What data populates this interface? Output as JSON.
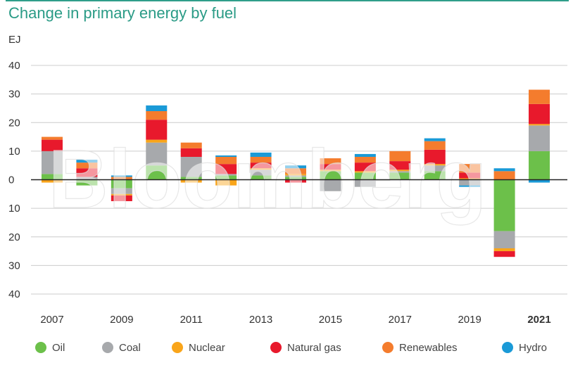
{
  "header": {
    "title": "Change in primary energy by fuel"
  },
  "chart_data": {
    "type": "bar",
    "stacked": true,
    "title": "Change in primary energy by fuel",
    "ylabel": "EJ",
    "ylim": [
      -40,
      40
    ],
    "yticks": [
      40,
      30,
      20,
      10,
      0,
      -10,
      -20,
      -30,
      -40
    ],
    "ytick_labels": [
      "40",
      "30",
      "20",
      "10",
      "0",
      "10",
      "20",
      "30",
      "40"
    ],
    "categories": [
      "2007",
      "2008",
      "2009",
      "2010",
      "2011",
      "2012",
      "2013",
      "2014",
      "2015",
      "2016",
      "2017",
      "2018",
      "2019",
      "2020",
      "2021"
    ],
    "xtick_labels": [
      {
        "year": "2007",
        "label": "2007"
      },
      {
        "year": "2009",
        "label": "2009"
      },
      {
        "year": "2011",
        "label": "2011"
      },
      {
        "year": "2013",
        "label": "2013"
      },
      {
        "year": "2015",
        "label": "2015"
      },
      {
        "year": "2017",
        "label": "2017"
      },
      {
        "year": "2019",
        "label": "2019"
      },
      {
        "year": "2021",
        "label": "2021",
        "bold": true
      }
    ],
    "series": [
      {
        "name": "Oil",
        "color": "#6cc04a",
        "values": [
          2,
          -2,
          -3,
          5,
          1,
          1.5,
          1.5,
          1,
          3,
          2.5,
          2.5,
          3,
          0,
          -18,
          10
        ]
      },
      {
        "name": "Coal",
        "color": "#a7a9ac",
        "values": [
          8,
          1,
          -2,
          8,
          7,
          0.5,
          2,
          0.5,
          -4,
          -2.5,
          0.5,
          2,
          -2,
          -6,
          9
        ]
      },
      {
        "name": "Nuclear",
        "color": "#f9a51a",
        "values": [
          -1,
          0,
          -0.5,
          1,
          -1,
          -2,
          0.5,
          0.5,
          0.5,
          0.5,
          0.5,
          0.5,
          0.5,
          -1,
          0.5
        ]
      },
      {
        "name": "Natural gas",
        "color": "#e8192c",
        "values": [
          4,
          3,
          -2,
          7,
          3,
          3.5,
          2,
          -1,
          2,
          3,
          3,
          5,
          2,
          -2,
          7
        ]
      },
      {
        "name": "Renewables",
        "color": "#f47c2d",
        "values": [
          1,
          2,
          1,
          3,
          2,
          2.5,
          2,
          2,
          2,
          2,
          3.5,
          3,
          3,
          3,
          5
        ]
      },
      {
        "name": "Hydro",
        "color": "#1a9ad7",
        "values": [
          0,
          1,
          0.5,
          2,
          0,
          0.5,
          1.5,
          1,
          0,
          1,
          0,
          1,
          -0.5,
          1,
          -1
        ]
      }
    ]
  },
  "legend": [
    {
      "label": "Oil",
      "color": "#6cc04a"
    },
    {
      "label": "Coal",
      "color": "#a7a9ac"
    },
    {
      "label": "Nuclear",
      "color": "#f9a51a"
    },
    {
      "label": "Natural gas",
      "color": "#e8192c"
    },
    {
      "label": "Renewables",
      "color": "#f47c2d"
    },
    {
      "label": "Hydro",
      "color": "#1a9ad7"
    }
  ],
  "watermark": "Bloomberg"
}
